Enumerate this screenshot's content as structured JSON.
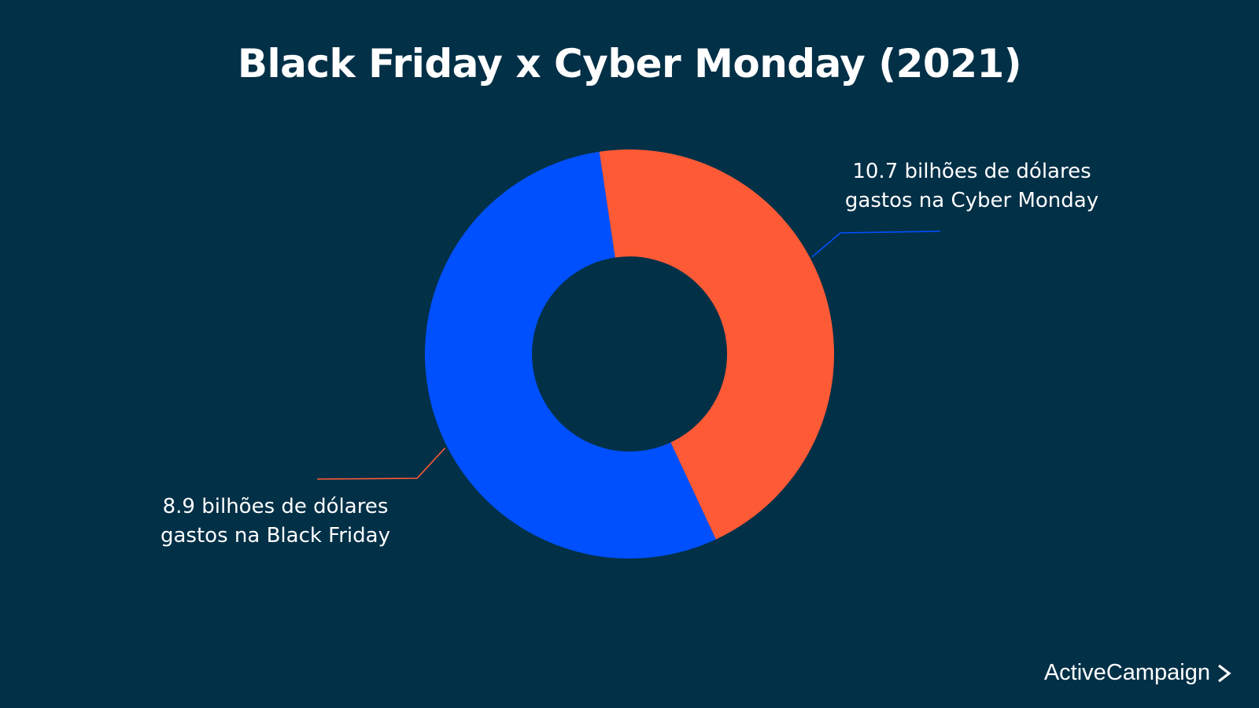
{
  "chart_data": {
    "type": "pie",
    "title": "Black Friday x Cyber Monday (2021)",
    "donut": true,
    "slices": [
      {
        "label_lines": [
          "10.7 bilhões de dólares",
          "gastos na Cyber Monday"
        ],
        "value": 10.7,
        "color": "#0050FF"
      },
      {
        "label_lines": [
          "8.9 bilhões de dólares",
          "gastos na Black Friday"
        ],
        "value": 8.9,
        "color": "#FF5A36"
      }
    ]
  },
  "brand": {
    "name": "ActiveCampaign",
    "icon": "chevron-right-icon"
  }
}
